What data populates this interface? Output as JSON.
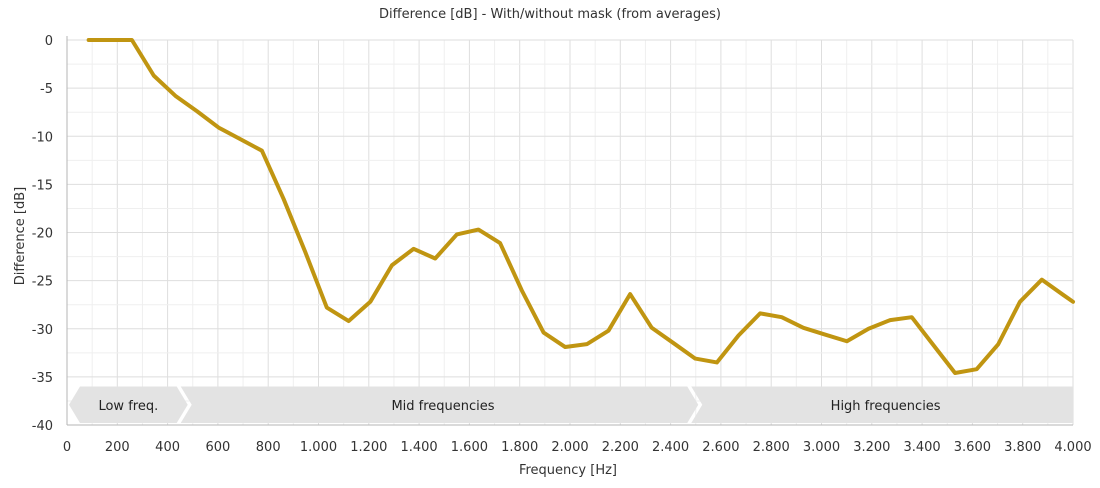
{
  "chart_data": {
    "type": "line",
    "title": "Difference [dB] - With/without mask (from averages)",
    "xlabel": "Frequency [Hz]",
    "ylabel": "Difference [dB]",
    "xlim": [
      0,
      4000
    ],
    "ylim": [
      -40,
      0
    ],
    "xticks": [
      0,
      200,
      400,
      600,
      800,
      1000,
      1200,
      1400,
      1600,
      1800,
      2000,
      2200,
      2400,
      2600,
      2800,
      3000,
      3200,
      3400,
      3600,
      3800,
      4000
    ],
    "xtick_labels": [
      "0",
      "200",
      "400",
      "600",
      "800",
      "1.000",
      "1.200",
      "1.400",
      "1.600",
      "1.800",
      "2.000",
      "2.200",
      "2.400",
      "2.600",
      "2.800",
      "3.000",
      "3.200",
      "3.400",
      "3.600",
      "3.800",
      "4.000"
    ],
    "yticks": [
      0,
      -5,
      -10,
      -15,
      -20,
      -25,
      -30,
      -35,
      -40
    ],
    "ytick_labels": [
      "0",
      "-5",
      "-10",
      "-15",
      "-20",
      "-25",
      "-30",
      "-35",
      "-40"
    ],
    "grid": true,
    "series": [
      {
        "color": "#c09511",
        "x": [
          86,
          172,
          258,
          345,
          431,
          517,
          603,
          689,
          775,
          861,
          947,
          1033,
          1120,
          1206,
          1292,
          1378,
          1464,
          1550,
          1636,
          1722,
          1808,
          1895,
          1981,
          2067,
          2153,
          2239,
          2325,
          2412,
          2498,
          2584,
          2670,
          2756,
          2842,
          2928,
          3014,
          3101,
          3187,
          3273,
          3359,
          3445,
          3531,
          3617,
          3703,
          3789,
          3876,
          3962,
          4000
        ],
        "y": [
          0,
          0,
          0,
          -3.7,
          -5.8,
          -7.4,
          -9.1,
          -10.3,
          -11.5,
          -16.5,
          -22,
          -27.8,
          -29.2,
          -27.2,
          -23.4,
          -21.7,
          -22.7,
          -20.2,
          -19.7,
          -21.1,
          -26,
          -30.4,
          -31.9,
          -31.6,
          -30.2,
          -26.4,
          -29.9,
          -31.5,
          -33.1,
          -33.5,
          -30.7,
          -28.4,
          -28.8,
          -29.9,
          -30.6,
          -31.3,
          -30,
          -29.1,
          -28.8,
          -31.7,
          -34.6,
          -34.2,
          -31.6,
          -27.2,
          -24.9,
          -26.5,
          -27.2
        ]
      }
    ],
    "bands": [
      {
        "label": "Low freq.",
        "from": 0,
        "to": 480
      },
      {
        "label": "Mid frequencies",
        "from": 480,
        "to": 2510
      },
      {
        "label": "High frequencies",
        "from": 2510,
        "to": 4000
      }
    ],
    "band_y_range": [
      -40,
      -36
    ]
  }
}
